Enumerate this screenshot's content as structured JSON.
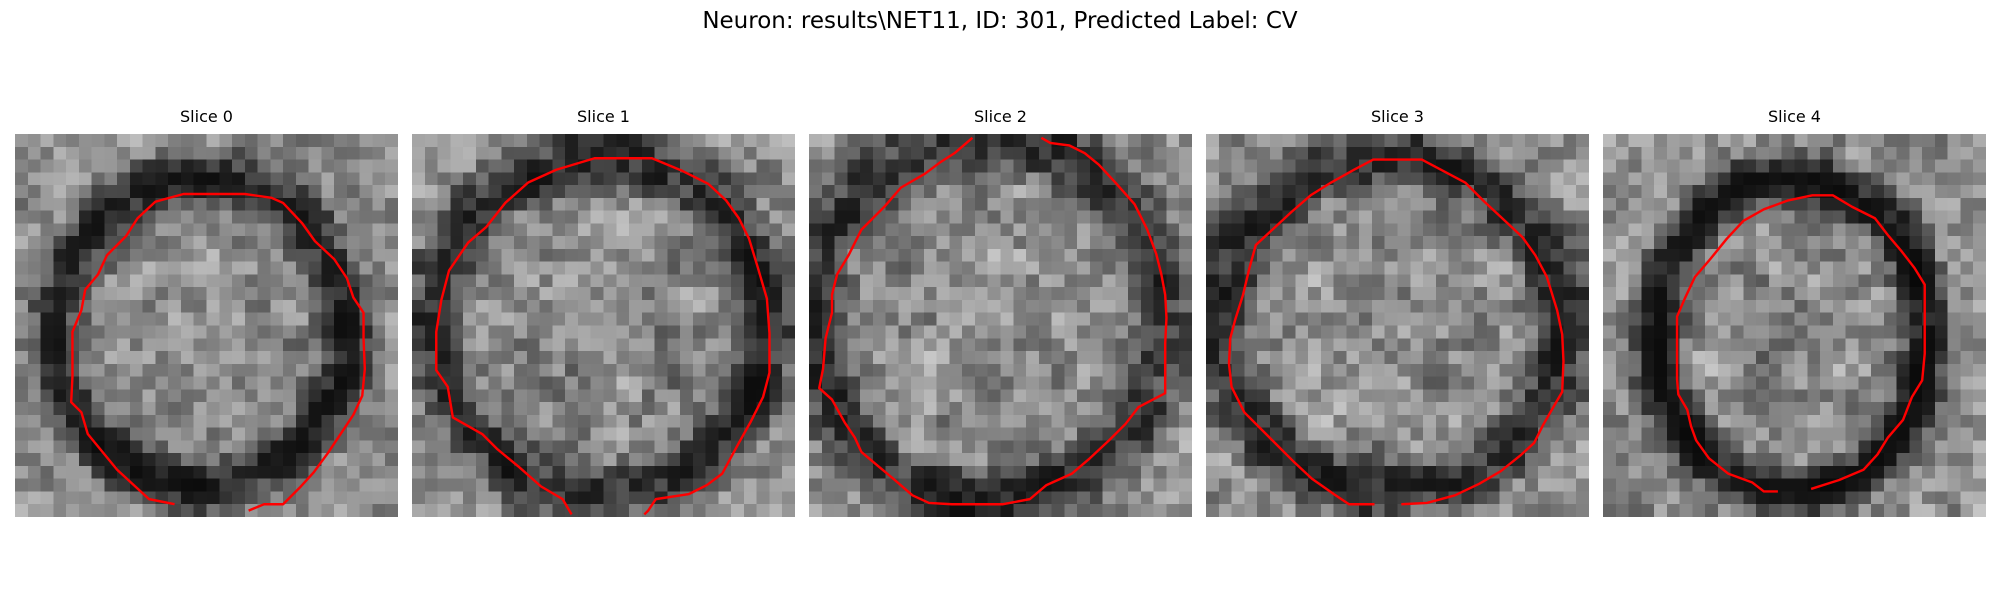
{
  "figure": {
    "title": "Neuron: results\\NET11, ID: 301, Predicted Label: CV",
    "contour_color": "#ff0000"
  },
  "slices": [
    {
      "label": "Slice 0"
    },
    {
      "label": "Slice 1"
    },
    {
      "label": "Slice 2"
    },
    {
      "label": "Slice 3"
    },
    {
      "label": "Slice 4"
    }
  ]
}
